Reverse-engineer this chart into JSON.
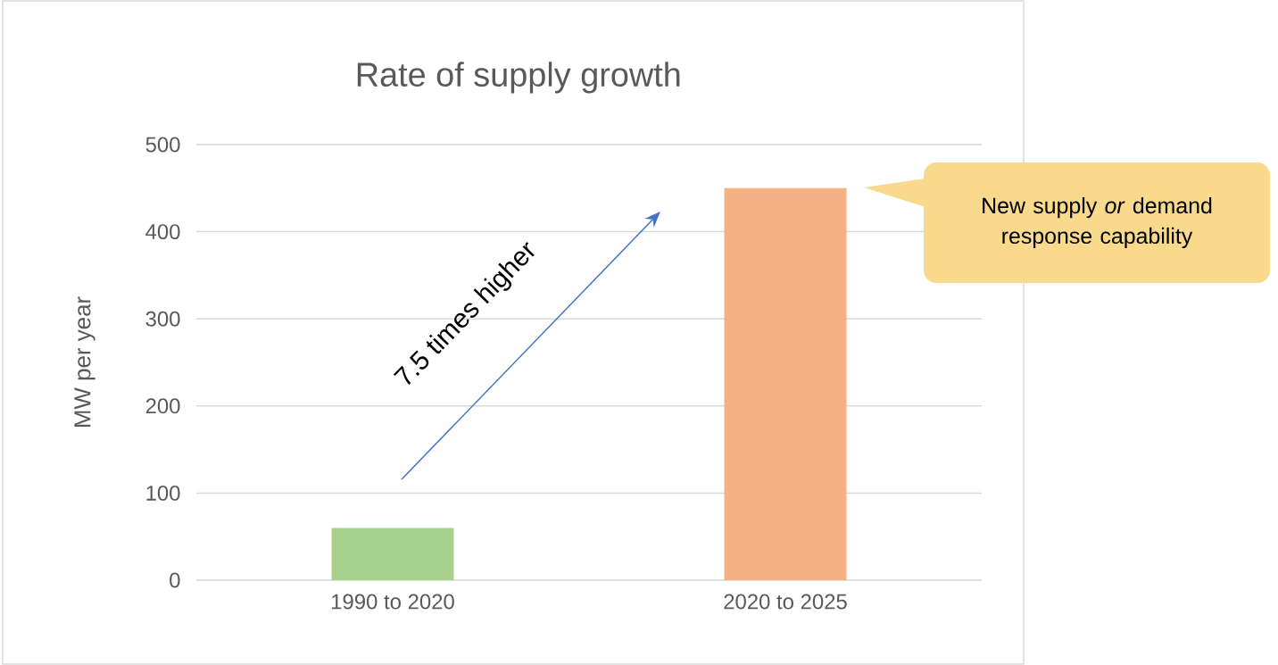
{
  "chart_data": {
    "type": "bar",
    "title": "Rate of supply growth",
    "ylabel": "MW per year",
    "categories": [
      "1990 to 2020",
      "2020 to 2025"
    ],
    "values": [
      60,
      450
    ],
    "colors": [
      "#a9d18e",
      "#f4b183"
    ],
    "ylim": [
      0,
      500
    ],
    "yticks": [
      0,
      100,
      200,
      300,
      400,
      500
    ],
    "grid": "y",
    "annotations": [
      "7.5 times higher",
      "New supply *or* demand response capability"
    ]
  }
}
